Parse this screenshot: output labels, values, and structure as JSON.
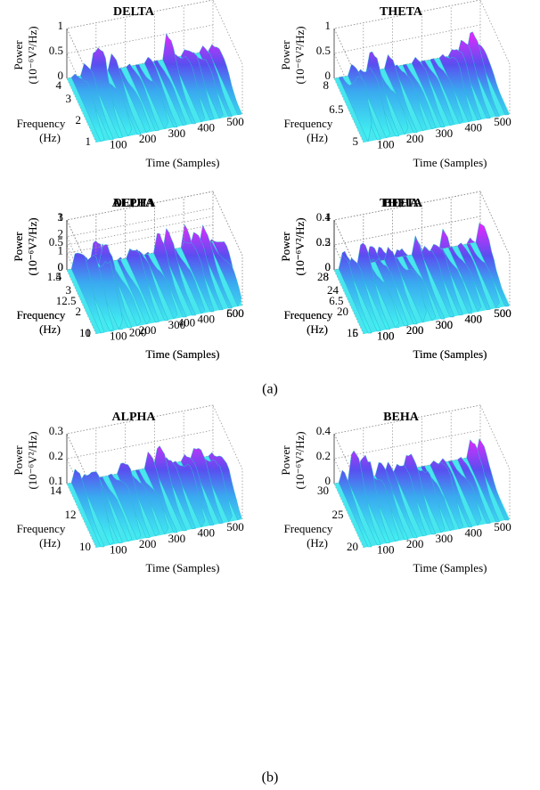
{
  "figure": {
    "panels": [
      {
        "label": "(a)",
        "plots": [
          {
            "title": "DELTA",
            "z_label": "Power",
            "z_unit": "(10⁻⁶V²/Hz)",
            "y_label": "Frequency",
            "y_unit": "(Hz)",
            "x_label": "Time (Samples)",
            "z_ticks": [
              "0",
              "0.5",
              "1"
            ],
            "y_ticks": [
              "1",
              "2",
              "3",
              "4"
            ],
            "x_ticks": [
              "100",
              "200",
              "300",
              "400",
              "500"
            ]
          },
          {
            "title": "THETA",
            "z_label": "Power",
            "z_unit": "(10⁻⁶V²/Hz)",
            "y_label": "Frequency",
            "y_unit": "(Hz)",
            "x_label": "Time (Samples)",
            "z_ticks": [
              "0",
              "0.5",
              "1"
            ],
            "y_ticks": [
              "5",
              "6.5",
              "8"
            ],
            "x_ticks": [
              "100",
              "200",
              "300",
              "400",
              "500"
            ]
          },
          {
            "title": "ALPHA",
            "z_label": "Power",
            "z_unit": "(10⁻⁶V²/Hz)",
            "y_label": "Frequency",
            "y_unit": "(Hz)",
            "x_label": "Time (Samples)",
            "z_ticks": [
              "0",
              "0.5",
              "1"
            ],
            "y_ticks": [
              "10",
              "12.5",
              "1.5"
            ],
            "x_ticks": [
              "100",
              "200",
              "300",
              "400",
              "500"
            ]
          },
          {
            "title": "BEHA",
            "z_label": "Power",
            "z_unit": "(10⁻⁶V²/Hz)",
            "y_label": "Frequency",
            "y_unit": "(Hz)",
            "x_label": "Time (Samples)",
            "z_ticks": [
              "0",
              "0.2",
              "0.4"
            ],
            "y_ticks": [
              "16",
              "20",
              "24",
              "28"
            ],
            "x_ticks": [
              "100",
              "200",
              "300",
              "400",
              "500"
            ]
          }
        ]
      },
      {
        "label": "(b)",
        "plots": [
          {
            "title": "DELTA",
            "z_label": "Power",
            "z_unit": "(10⁻⁶V²/Hz)",
            "y_label": "Frequency",
            "y_unit": "(Hz)",
            "x_label": "Time (Samples)",
            "z_ticks": [
              "0",
              "1",
              "2",
              "3"
            ],
            "y_ticks": [
              "1",
              "2",
              "3",
              "4"
            ],
            "x_ticks": [
              "200",
              "400",
              "600"
            ]
          },
          {
            "title": "THETA",
            "z_label": "Power",
            "z_unit": "(10⁻⁶V²/Hz)",
            "y_label": "Frequency",
            "y_unit": "(Hz)",
            "x_label": "Time (Samples)",
            "z_ticks": [
              "0",
              "0.5",
              "1"
            ],
            "y_ticks": [
              "5",
              "6.5",
              "8"
            ],
            "x_ticks": [
              "100",
              "200",
              "300",
              "400",
              "500"
            ]
          },
          {
            "title": "ALPHA",
            "z_label": "Power",
            "z_unit": "(10⁻⁶V²/Hz)",
            "y_label": "Frequency",
            "y_unit": "(Hz)",
            "x_label": "Time (Samples)",
            "z_ticks": [
              "0.1",
              "0.2",
              "0.3"
            ],
            "y_ticks": [
              "10",
              "12",
              "14"
            ],
            "x_ticks": [
              "100",
              "200",
              "300",
              "400",
              "500"
            ]
          },
          {
            "title": "BEHA",
            "z_label": "Power",
            "z_unit": "(10⁻⁶V²/Hz)",
            "y_label": "Frequency",
            "y_unit": "(Hz)",
            "x_label": "Time (Samples)",
            "z_ticks": [
              "0",
              "0.2",
              "0.4"
            ],
            "y_ticks": [
              "20",
              "25",
              "30"
            ],
            "x_ticks": [
              "100",
              "200",
              "300",
              "400",
              "500"
            ]
          }
        ]
      }
    ]
  }
}
